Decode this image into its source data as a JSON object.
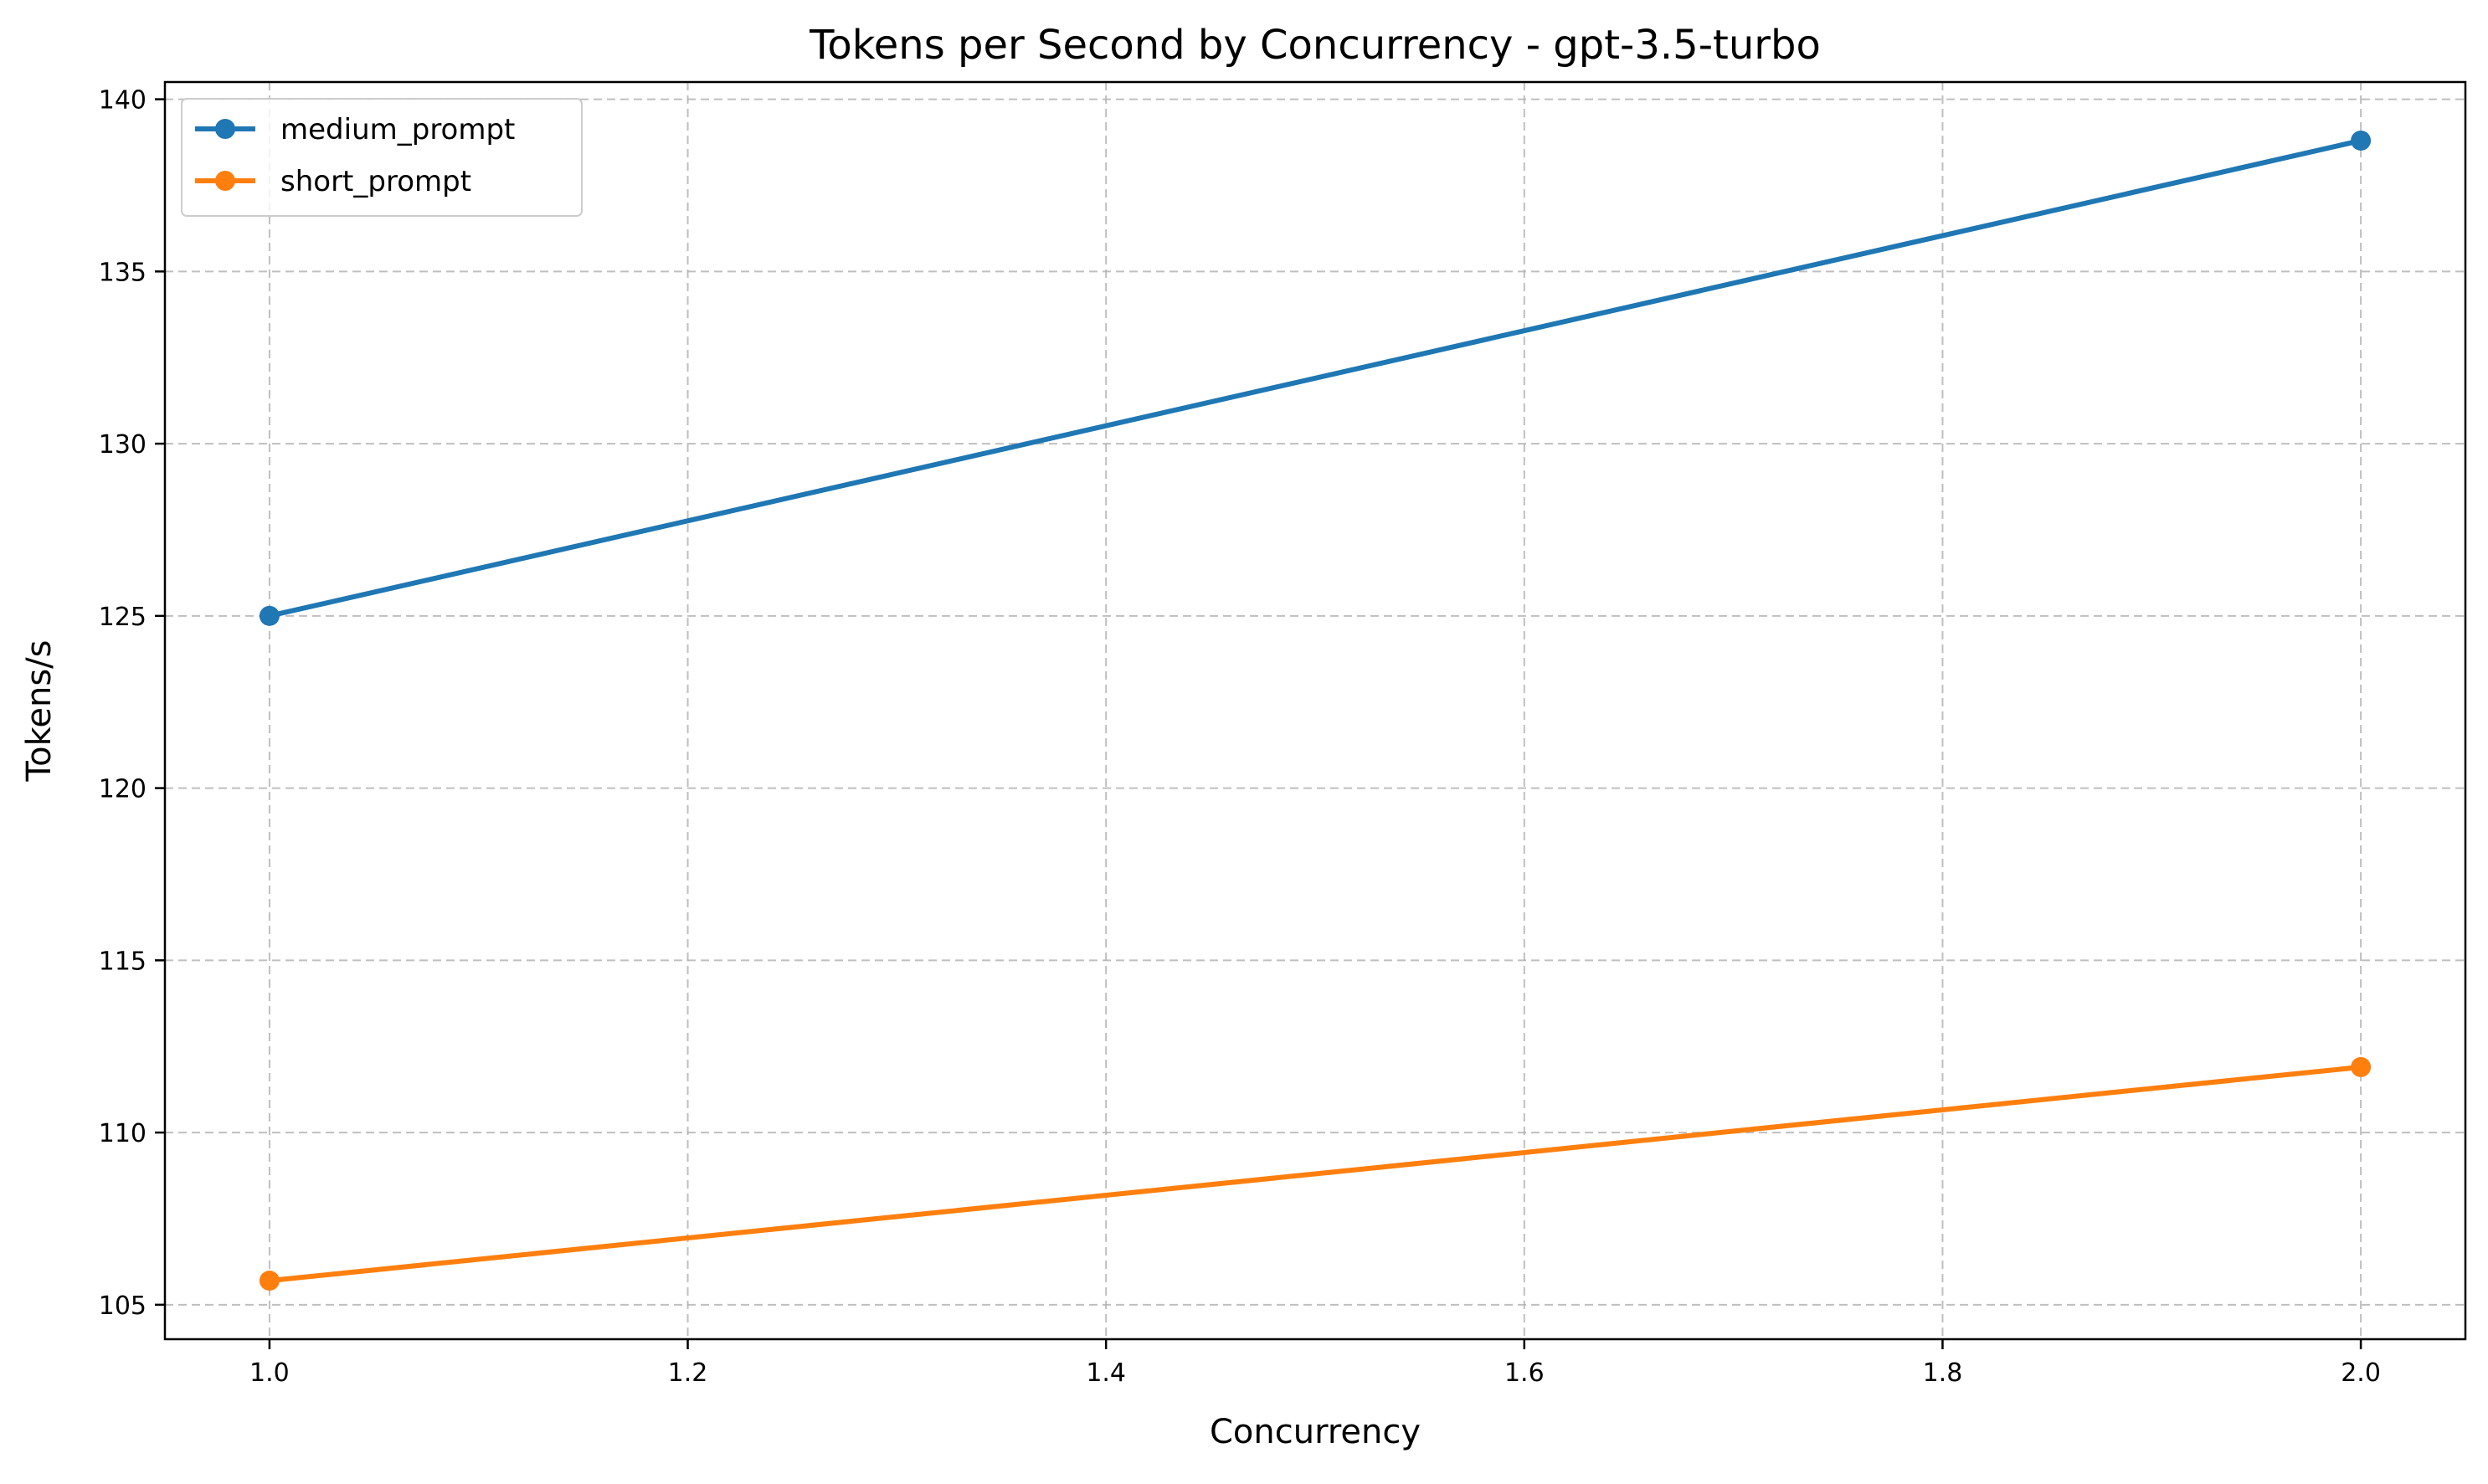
{
  "chart_data": {
    "type": "line",
    "title": "Tokens per Second by Concurrency - gpt-3.5-turbo",
    "xlabel": "Concurrency",
    "ylabel": "Tokens/s",
    "xlim": [
      0.95,
      2.05
    ],
    "ylim": [
      104,
      140.5
    ],
    "xticks": [
      1.0,
      1.2,
      1.4,
      1.6,
      1.8,
      2.0
    ],
    "xtick_labels": [
      "1.0",
      "1.2",
      "1.4",
      "1.6",
      "1.8",
      "2.0"
    ],
    "yticks": [
      105,
      110,
      115,
      120,
      125,
      130,
      135,
      140
    ],
    "ytick_labels": [
      "105",
      "110",
      "115",
      "120",
      "125",
      "130",
      "135",
      "140"
    ],
    "grid": true,
    "legend_position": "top-left",
    "x": [
      1.0,
      2.0
    ],
    "series": [
      {
        "name": "medium_prompt",
        "values": [
          125.0,
          138.8
        ],
        "color": "#1f77b4"
      },
      {
        "name": "short_prompt",
        "values": [
          105.7,
          111.9
        ],
        "color": "#ff7f0e"
      }
    ]
  }
}
